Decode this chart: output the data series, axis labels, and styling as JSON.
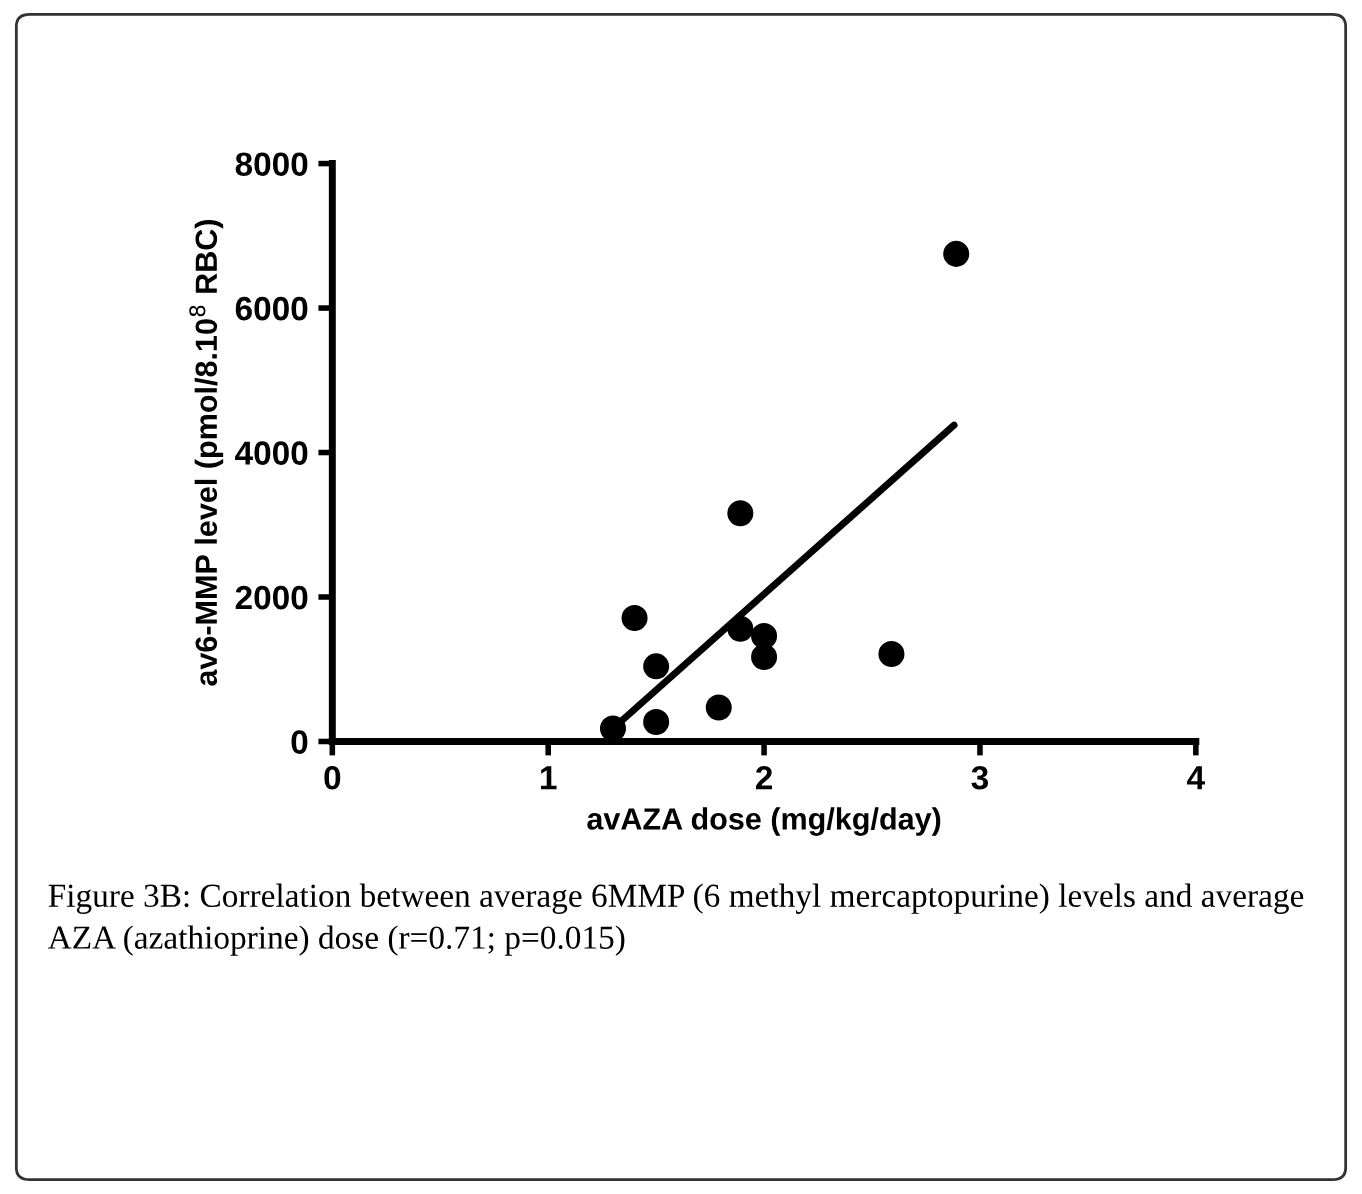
{
  "chart_data": {
    "type": "scatter",
    "xlabel": "avAZA dose (mg/kg/day)",
    "ylabel": "av6-MMP level (pmol/8.10$^{8}$ RBC)",
    "x": [
      1.3,
      1.4,
      1.5,
      1.5,
      1.79,
      1.89,
      1.89,
      2.0,
      2.0,
      2.59,
      2.89
    ],
    "series": [
      {
        "color": "#000000",
        "marker": "circle",
        "values": [
          180,
          1710,
          1040,
          270,
          470,
          3160,
          1560,
          1460,
          1170,
          1210,
          6750
        ]
      },
      {
        "type": "line",
        "color": "#000000",
        "marker": "none",
        "x": [
          1.3,
          2.88
        ],
        "values": [
          180,
          4380
        ]
      }
    ],
    "xlim": [
      0,
      4
    ],
    "xticks": [
      0,
      1,
      2,
      3,
      4
    ],
    "ylim": [
      0,
      8000
    ],
    "yticks": [
      0,
      2000,
      4000,
      6000,
      8000
    ],
    "grid": false,
    "legend": false,
    "annotations": [
      "Figure 3B: Correlation between average 6MMP (6 methyl mercaptopurine) levels and average AZA (azathioprine) dose (r=0.71; p=0.015)"
    ]
  }
}
